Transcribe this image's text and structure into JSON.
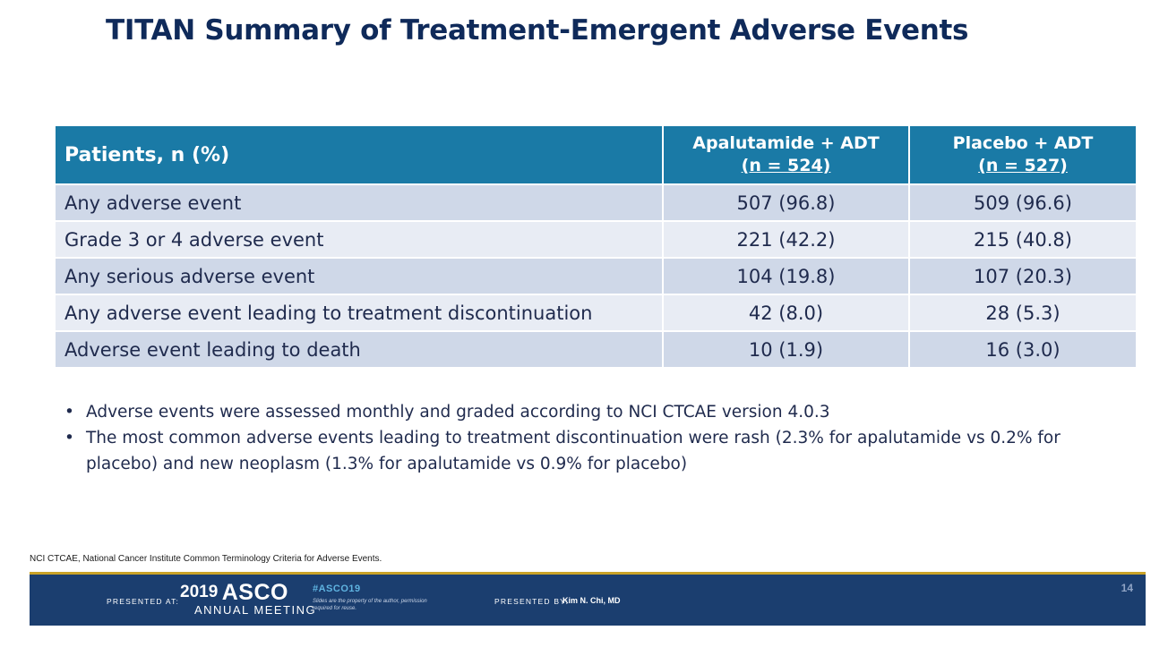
{
  "slide": {
    "title": "TITAN Summary of Treatment-Emergent Adverse Events"
  },
  "table": {
    "row_header": "Patients, n (%)",
    "columns": [
      {
        "name": "Apalutamide + ADT",
        "n": "(n = 524)"
      },
      {
        "name": "Placebo + ADT",
        "n": "(n = 527)"
      }
    ],
    "rows": [
      {
        "label": "Any adverse event",
        "values": [
          "507 (96.8)",
          "509 (96.6)"
        ]
      },
      {
        "label": "Grade 3 or 4 adverse event",
        "values": [
          "221 (42.2)",
          "215 (40.8)"
        ]
      },
      {
        "label": "Any serious adverse event",
        "values": [
          "104 (19.8)",
          "107 (20.3)"
        ]
      },
      {
        "label": "Any adverse event leading to treatment discontinuation",
        "values": [
          "42 (8.0)",
          "28 (5.3)"
        ]
      },
      {
        "label": "Adverse event leading to death",
        "values": [
          "10 (1.9)",
          "16 (3.0)"
        ]
      }
    ]
  },
  "notes": [
    "Adverse events were assessed monthly and graded according to NCI CTCAE version 4.0.3",
    "The most common adverse events leading to treatment discontinuation were rash (2.3% for apalutamide vs 0.2% for placebo) and new neoplasm (1.3% for apalutamide vs 0.9% for placebo)"
  ],
  "bullet_glyph": "•",
  "footnote": "NCI CTCAE, National Cancer Institute Common Terminology Criteria for Adverse Events.",
  "footer": {
    "presented_at": "PRESENTED AT:",
    "year": "2019",
    "brand": "ASCO",
    "meeting": "ANNUAL MEETING",
    "hashtag": "#ASCO19",
    "rights": "Slides are the property of the author, permission required for reuse.",
    "presented_by": "PRESENTED BY:",
    "presenter": "Kim N. Chi, MD",
    "page_number": "14"
  },
  "colors": {
    "title": "#0f2a5a",
    "header_bg": "#1a7aa6",
    "row_odd": "#cfd8e8",
    "row_even": "#e8ecf4",
    "footer_bg": "#1b3e6f",
    "accent_line": "#c9a227"
  }
}
